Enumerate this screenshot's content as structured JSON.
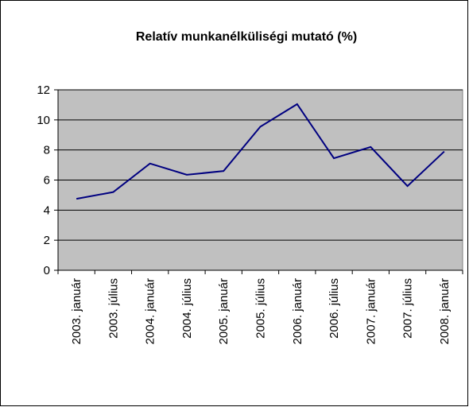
{
  "chart_data": {
    "type": "line",
    "title": "Relatív munkanélküliségi mutató (%)",
    "categories": [
      "2003. január",
      "2003. július",
      "2004. január",
      "2004. július",
      "2005. január",
      "2005. július",
      "2006. január",
      "2006. július",
      "2007. január",
      "2007. július",
      "2008. január"
    ],
    "series": [
      {
        "name": "Relatív munkanélküliségi mutató (%)",
        "color": "#000080",
        "values": [
          4.75,
          5.2,
          7.1,
          6.35,
          6.6,
          9.55,
          11.05,
          7.45,
          8.2,
          5.6,
          7.9
        ]
      }
    ],
    "ylim": [
      0,
      12
    ],
    "yticks": [
      0,
      2,
      4,
      6,
      8,
      10,
      12
    ],
    "grid": true
  }
}
